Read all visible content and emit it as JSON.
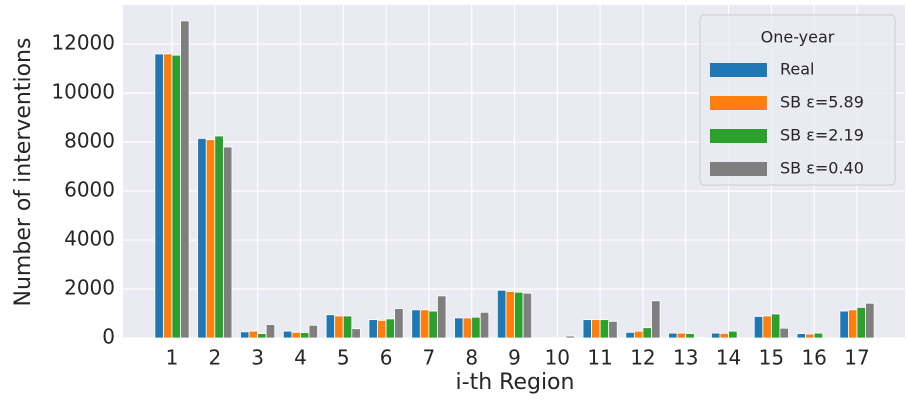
{
  "chart_data": {
    "type": "bar",
    "xlabel": "i-th Region",
    "ylabel": "Number of interventions",
    "categories": [
      "1",
      "2",
      "3",
      "4",
      "5",
      "6",
      "7",
      "8",
      "9",
      "10",
      "11",
      "12",
      "13",
      "14",
      "15",
      "16",
      "17"
    ],
    "series": [
      {
        "name": "Real",
        "color": "#1f77b4",
        "values": [
          11600,
          8150,
          250,
          280,
          950,
          750,
          1150,
          820,
          1950,
          0,
          750,
          230,
          200,
          200,
          880,
          180,
          1100
        ]
      },
      {
        "name": "SB ε=5.89",
        "color": "#ff7f0e",
        "values": [
          11600,
          8100,
          280,
          230,
          900,
          720,
          1150,
          820,
          1900,
          0,
          750,
          280,
          200,
          190,
          900,
          160,
          1150
        ]
      },
      {
        "name": "SB ε=2.19",
        "color": "#2ca02c",
        "values": [
          11550,
          8250,
          180,
          220,
          900,
          780,
          1100,
          850,
          1870,
          0,
          750,
          420,
          180,
          280,
          980,
          200,
          1250
        ]
      },
      {
        "name": "SB ε=0.40",
        "color": "#7f7f7f",
        "values": [
          12950,
          7800,
          550,
          520,
          380,
          1200,
          1720,
          1050,
          1830,
          80,
          680,
          1520,
          30,
          0,
          400,
          0,
          1420
        ]
      }
    ],
    "legend_title": "One-year",
    "legend": "upper right",
    "ylim": [
      0,
      13600
    ],
    "yticks": [
      0,
      2000,
      4000,
      6000,
      8000,
      10000,
      12000
    ],
    "grid": true
  }
}
